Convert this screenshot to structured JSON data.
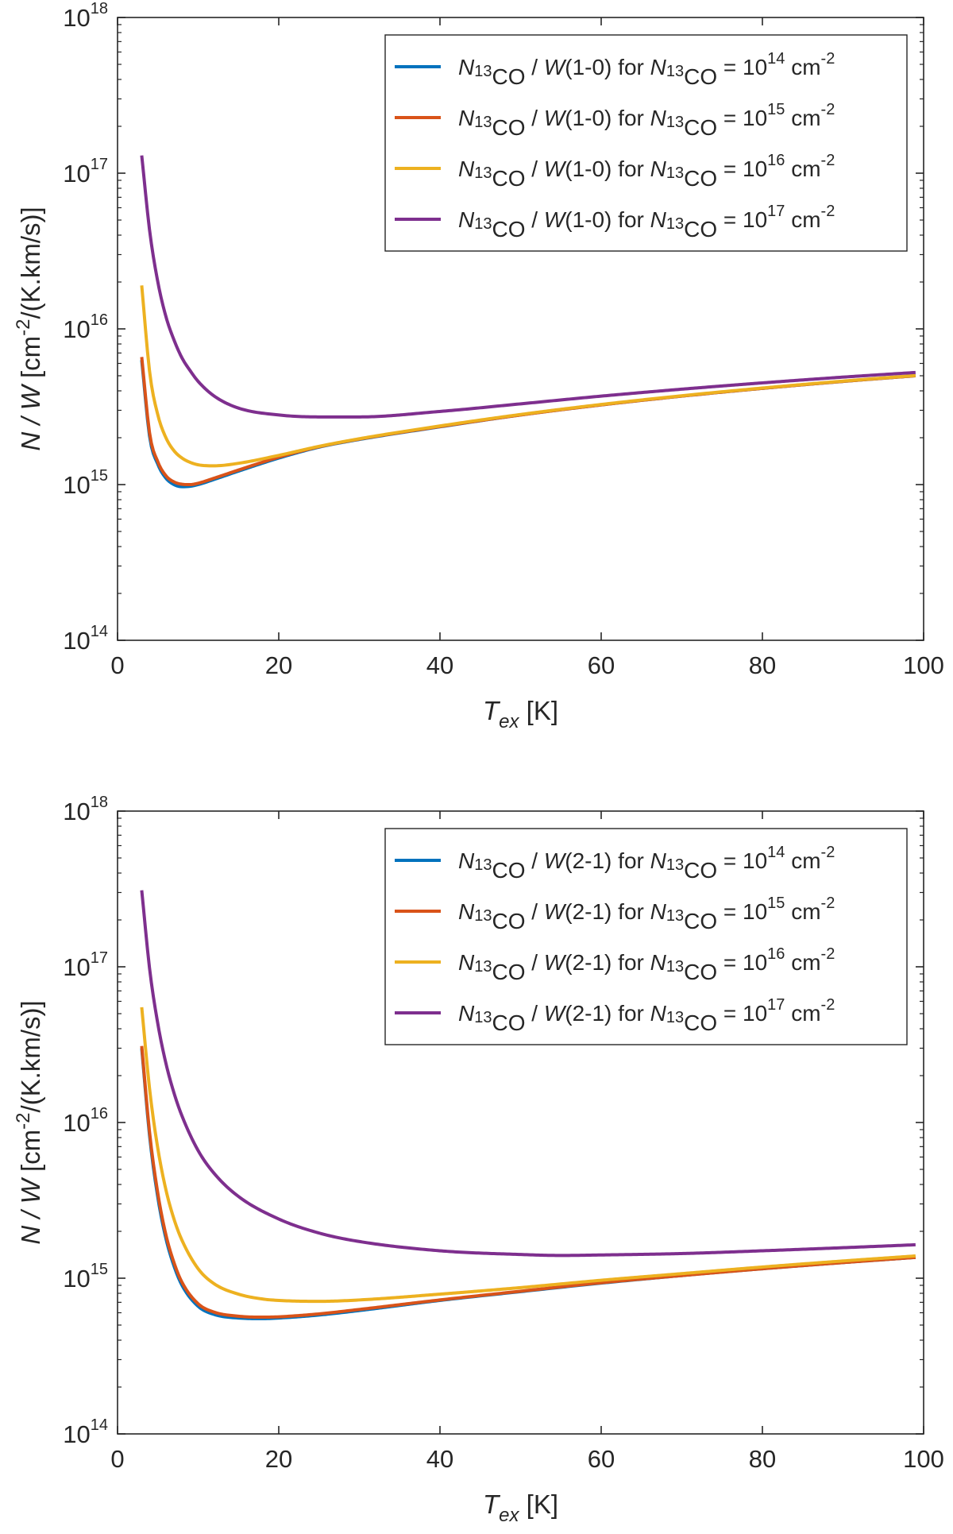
{
  "chart_data": [
    {
      "type": "line",
      "panel": "top",
      "transition": "1-0",
      "xlabel": "T",
      "xlabel_sub": "ex",
      "xlabel_unit": "[K]",
      "ylabel_main": "N /  W",
      "ylabel_unit_pre": "[cm",
      "ylabel_unit_exp": "-2",
      "ylabel_unit_post": "/(K.km/s)]",
      "xlim": [
        0,
        100
      ],
      "ylim_log10": [
        14,
        18
      ],
      "x_ticks": [
        "0",
        "20",
        "40",
        "60",
        "80",
        "100"
      ],
      "x_tick_values": [
        0,
        20,
        40,
        60,
        80,
        100
      ],
      "y_ticks": [
        {
          "base": "10",
          "exp": "14"
        },
        {
          "base": "10",
          "exp": "15"
        },
        {
          "base": "10",
          "exp": "16"
        },
        {
          "base": "10",
          "exp": "17"
        },
        {
          "base": "10",
          "exp": "18"
        }
      ],
      "y_tick_values_log10": [
        14,
        15,
        16,
        17,
        18
      ],
      "legend_position": "top-right",
      "series": [
        {
          "name": "N13CO / W(1-0) for N13CO = 10^14 cm^-2",
          "color": "#0072BD",
          "legend": {
            "n": "N",
            "n_sub": "13",
            "n_sub2": "CO",
            "mid": " /  ",
            "w": "W",
            "line": "(1-0) for ",
            "n2": "N",
            "n2_sub": "13",
            "n2_sub2": "CO",
            "eq": " = 10",
            "exp": "14",
            "unit": " cm",
            "unit_exp": "-2"
          },
          "x": [
            3,
            4,
            5,
            6,
            7,
            8,
            9,
            10,
            12,
            15,
            20,
            25,
            30,
            40,
            50,
            60,
            70,
            80,
            90,
            99
          ],
          "y": [
            6300000000000000.0,
            2000000000000000.0,
            1350000000000000.0,
            1100000000000000.0,
            1000000000000000.0,
            970000000000000.0,
            975000000000000.0,
            1000000000000000.0,
            1080000000000000.0,
            1220000000000000.0,
            1480000000000000.0,
            1740000000000000.0,
            1950000000000000.0,
            2350000000000000.0,
            2800000000000000.0,
            3250000000000000.0,
            3700000000000000.0,
            4150000000000000.0,
            4600000000000000.0,
            5000000000000000.0
          ]
        },
        {
          "name": "N13CO / W(1-0) for N13CO = 10^15 cm^-2",
          "color": "#D95319",
          "legend": {
            "n": "N",
            "n_sub": "13",
            "n_sub2": "CO",
            "mid": " /  ",
            "w": "W",
            "line": "(1-0) for ",
            "n2": "N",
            "n2_sub": "13",
            "n2_sub2": "CO",
            "eq": " = 10",
            "exp": "15",
            "unit": " cm",
            "unit_exp": "-2"
          },
          "x": [
            3,
            4,
            5,
            6,
            7,
            8,
            9,
            10,
            12,
            15,
            20,
            25,
            30,
            40,
            50,
            60,
            70,
            80,
            90,
            99
          ],
          "y": [
            6600000000000000.0,
            2100000000000000.0,
            1400000000000000.0,
            1140000000000000.0,
            1040000000000000.0,
            1005000000000000.0,
            1000000000000000.0,
            1020000000000000.0,
            1100000000000000.0,
            1240000000000000.0,
            1500000000000000.0,
            1750000000000000.0,
            1960000000000000.0,
            2360000000000000.0,
            2800000000000000.0,
            3250000000000000.0,
            3700000000000000.0,
            4150000000000000.0,
            4600000000000000.0,
            5000000000000000.0
          ]
        },
        {
          "name": "N13CO / W(1-0) for N13CO = 10^16 cm^-2",
          "color": "#EDB120",
          "legend": {
            "n": "N",
            "n_sub": "13",
            "n_sub2": "CO",
            "mid": " /  ",
            "w": "W",
            "line": "(1-0) for ",
            "n2": "N",
            "n2_sub": "13",
            "n2_sub2": "CO",
            "eq": " = 10",
            "exp": "16",
            "unit": " cm",
            "unit_exp": "-2"
          },
          "x": [
            3,
            4,
            5,
            6,
            7,
            8,
            9,
            10,
            12,
            15,
            20,
            25,
            30,
            40,
            50,
            60,
            70,
            80,
            90,
            99
          ],
          "y": [
            1.9e+16,
            5200000000000000.0,
            2800000000000000.0,
            2000000000000000.0,
            1650000000000000.0,
            1480000000000000.0,
            1390000000000000.0,
            1340000000000000.0,
            1320000000000000.0,
            1370000000000000.0,
            1540000000000000.0,
            1760000000000000.0,
            1970000000000000.0,
            2380000000000000.0,
            2820000000000000.0,
            3270000000000000.0,
            3720000000000000.0,
            4170000000000000.0,
            4620000000000000.0,
            5020000000000000.0
          ]
        },
        {
          "name": "N13CO / W(1-0) for N13CO = 10^17 cm^-2",
          "color": "#7E2F8E",
          "legend": {
            "n": "N",
            "n_sub": "13",
            "n_sub2": "CO",
            "mid": " /  ",
            "w": "W",
            "line": "(1-0) for ",
            "n2": "N",
            "n2_sub": "13",
            "n2_sub2": "CO",
            "eq": " = 10",
            "exp": "17",
            "unit": " cm",
            "unit_exp": "-2"
          },
          "x": [
            3,
            4,
            5,
            6,
            7,
            8,
            9,
            10,
            12,
            15,
            20,
            25,
            30,
            40,
            50,
            60,
            70,
            80,
            90,
            99
          ],
          "y": [
            1.3e+17,
            4.2e+16,
            2e+16,
            1.2e+16,
            8500000000000000.0,
            6500000000000000.0,
            5400000000000000.0,
            4600000000000000.0,
            3700000000000000.0,
            3100000000000000.0,
            2800000000000000.0,
            2720000000000000.0,
            2720000000000000.0,
            2950000000000000.0,
            3300000000000000.0,
            3700000000000000.0,
            4100000000000000.0,
            4500000000000000.0,
            4900000000000000.0,
            5250000000000000.0
          ]
        }
      ]
    },
    {
      "type": "line",
      "panel": "bottom",
      "transition": "2-1",
      "xlabel": "T",
      "xlabel_sub": "ex",
      "xlabel_unit": "[K]",
      "ylabel_main": "N /  W",
      "ylabel_unit_pre": "[cm",
      "ylabel_unit_exp": "-2",
      "ylabel_unit_post": "/(K.km/s)]",
      "xlim": [
        0,
        100
      ],
      "ylim_log10": [
        14,
        18
      ],
      "x_ticks": [
        "0",
        "20",
        "40",
        "60",
        "80",
        "100"
      ],
      "x_tick_values": [
        0,
        20,
        40,
        60,
        80,
        100
      ],
      "y_ticks": [
        {
          "base": "10",
          "exp": "14"
        },
        {
          "base": "10",
          "exp": "15"
        },
        {
          "base": "10",
          "exp": "16"
        },
        {
          "base": "10",
          "exp": "17"
        },
        {
          "base": "10",
          "exp": "18"
        }
      ],
      "y_tick_values_log10": [
        14,
        15,
        16,
        17,
        18
      ],
      "legend_position": "top-right",
      "series": [
        {
          "name": "N13CO / W(2-1) for N13CO = 10^14 cm^-2",
          "color": "#0072BD",
          "legend": {
            "n": "N",
            "n_sub": "13",
            "n_sub2": "CO",
            "mid": " /  ",
            "w": "W",
            "line": "(2-1) for ",
            "n2": "N",
            "n2_sub": "13",
            "n2_sub2": "CO",
            "eq": " = 10",
            "exp": "14",
            "unit": " cm",
            "unit_exp": "-2"
          },
          "x": [
            3,
            4,
            5,
            6,
            7,
            8,
            10,
            12,
            15,
            18,
            20,
            25,
            30,
            40,
            50,
            60,
            70,
            80,
            90,
            99
          ],
          "y": [
            3e+16,
            8000000000000000.0,
            3300000000000000.0,
            1800000000000000.0,
            1200000000000000.0,
            900000000000000.0,
            660000000000000.0,
            585000000000000.0,
            555000000000000.0,
            550000000000000.0,
            555000000000000.0,
            580000000000000.0,
            620000000000000.0,
            720000000000000.0,
            820000000000000.0,
            930000000000000.0,
            1040000000000000.0,
            1150000000000000.0,
            1260000000000000.0,
            1360000000000000.0
          ]
        },
        {
          "name": "N13CO / W(2-1) for N13CO = 10^15 cm^-2",
          "color": "#D95319",
          "legend": {
            "n": "N",
            "n_sub": "13",
            "n_sub2": "CO",
            "mid": " /  ",
            "w": "W",
            "line": "(2-1) for ",
            "n2": "N",
            "n2_sub": "13",
            "n2_sub2": "CO",
            "eq": " = 10",
            "exp": "15",
            "unit": " cm",
            "unit_exp": "-2"
          },
          "x": [
            3,
            4,
            5,
            6,
            7,
            8,
            10,
            12,
            15,
            18,
            20,
            25,
            30,
            40,
            50,
            60,
            70,
            80,
            90,
            99
          ],
          "y": [
            3.1e+16,
            8400000000000000.0,
            3500000000000000.0,
            1900000000000000.0,
            1260000000000000.0,
            940000000000000.0,
            685000000000000.0,
            605000000000000.0,
            570000000000000.0,
            562000000000000.0,
            565000000000000.0,
            590000000000000.0,
            630000000000000.0,
            725000000000000.0,
            825000000000000.0,
            935000000000000.0,
            1040000000000000.0,
            1150000000000000.0,
            1260000000000000.0,
            1360000000000000.0
          ]
        },
        {
          "name": "N13CO / W(2-1) for N13CO = 10^16 cm^-2",
          "color": "#EDB120",
          "legend": {
            "n": "N",
            "n_sub": "13",
            "n_sub2": "CO",
            "mid": " /  ",
            "w": "W",
            "line": "(2-1) for ",
            "n2": "N",
            "n2_sub": "13",
            "n2_sub2": "CO",
            "eq": " = 10",
            "exp": "16",
            "unit": " cm",
            "unit_exp": "-2"
          },
          "x": [
            3,
            4,
            5,
            6,
            7,
            8,
            10,
            12,
            15,
            18,
            20,
            25,
            30,
            40,
            50,
            60,
            70,
            80,
            90,
            99
          ],
          "y": [
            5.5e+16,
            1.6e+16,
            6800000000000000.0,
            3700000000000000.0,
            2400000000000000.0,
            1750000000000000.0,
            1150000000000000.0,
            920000000000000.0,
            790000000000000.0,
            735000000000000.0,
            720000000000000.0,
            710000000000000.0,
            725000000000000.0,
            790000000000000.0,
            870000000000000.0,
            970000000000000.0,
            1070000000000000.0,
            1180000000000000.0,
            1290000000000000.0,
            1390000000000000.0
          ]
        },
        {
          "name": "N13CO / W(2-1) for N13CO = 10^17 cm^-2",
          "color": "#7E2F8E",
          "legend": {
            "n": "N",
            "n_sub": "13",
            "n_sub2": "CO",
            "mid": " /  ",
            "w": "W",
            "line": "(2-1) for ",
            "n2": "N",
            "n2_sub": "13",
            "n2_sub2": "CO",
            "eq": " = 10",
            "exp": "17",
            "unit": " cm",
            "unit_exp": "-2"
          },
          "x": [
            3,
            4,
            5,
            6,
            7,
            8,
            10,
            12,
            15,
            20,
            25,
            30,
            40,
            50,
            55,
            60,
            70,
            80,
            90,
            99
          ],
          "y": [
            3.1e+17,
            9.5e+16,
            4.3e+16,
            2.4e+16,
            1.55e+16,
            1.1e+16,
            6600000000000000.0,
            4700000000000000.0,
            3350000000000000.0,
            2400000000000000.0,
            1950000000000000.0,
            1720000000000000.0,
            1500000000000000.0,
            1420000000000000.0,
            1400000000000000.0,
            1410000000000000.0,
            1440000000000000.0,
            1500000000000000.0,
            1570000000000000.0,
            1640000000000000.0
          ]
        }
      ]
    }
  ]
}
